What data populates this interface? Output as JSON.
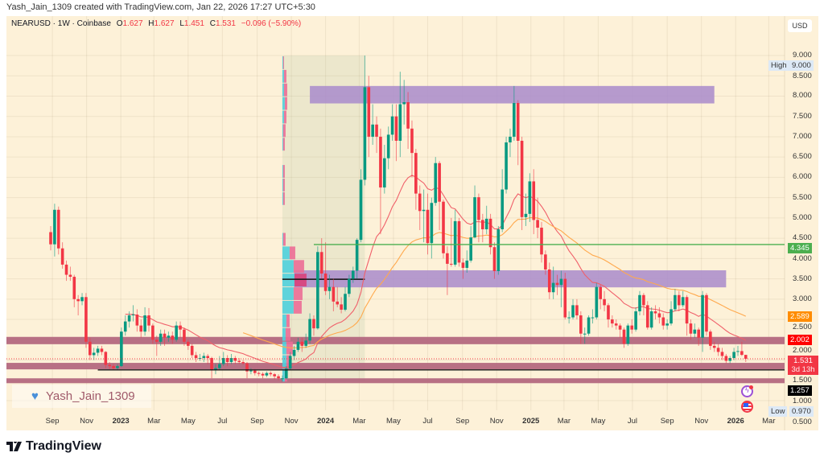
{
  "credit": "Yash_Jain_1309 created with TradingView.com, Jan 22, 2026 17:27 UTC+5:30",
  "legend": {
    "symbol": "NEARUSD · 1W · Coinbase",
    "o_label": "O",
    "o": "1.627",
    "h_label": "H",
    "h": "1.627",
    "l_label": "L",
    "l": "1.451",
    "c_label": "C",
    "c": "1.531",
    "change": "−0.096 (−5.90%)"
  },
  "currency_button": "USD",
  "price_axis": {
    "ticks": [
      "9.000",
      "8.500",
      "8.000",
      "7.500",
      "7.000",
      "6.500",
      "6.000",
      "5.500",
      "5.000",
      "4.500",
      "4.000",
      "3.500",
      "3.000",
      "2.500",
      "2.000",
      "1.500",
      "1.000",
      "0.500"
    ],
    "high_label": "High",
    "high_value": "9.000",
    "low_label": "Low",
    "low_value": "0.970",
    "markers": [
      {
        "name": "horizontal-line-price",
        "value": "4.345",
        "price": 4.345,
        "bg": "#4caf50",
        "fg": "#ffffff"
      },
      {
        "name": "slow-ma-price",
        "value": "2.589",
        "price": 2.589,
        "bg": "#ff8c00",
        "fg": "#ffffff"
      },
      {
        "name": "fast-ma-price",
        "value": "2.002",
        "price": 2.002,
        "bg": "#ff0000",
        "fg": "#ffffff"
      },
      {
        "name": "support-line-price",
        "value": "1.257",
        "price": 1.257,
        "bg": "#000000",
        "fg": "#ffffff"
      }
    ],
    "last_price": {
      "value": "1.531",
      "countdown": "3d 13h",
      "bg": "#f23645"
    }
  },
  "time_axis": [
    {
      "label": "Sep",
      "date": "2022-09-01"
    },
    {
      "label": "Nov",
      "date": "2022-11-01"
    },
    {
      "label": "2023",
      "date": "2023-01-01",
      "year": true
    },
    {
      "label": "Mar",
      "date": "2023-03-01"
    },
    {
      "label": "May",
      "date": "2023-05-01"
    },
    {
      "label": "Jul",
      "date": "2023-07-01"
    },
    {
      "label": "Sep",
      "date": "2023-09-01"
    },
    {
      "label": "Nov",
      "date": "2023-11-01"
    },
    {
      "label": "2024",
      "date": "2024-01-01",
      "year": true
    },
    {
      "label": "Mar",
      "date": "2024-03-01"
    },
    {
      "label": "May",
      "date": "2024-05-01"
    },
    {
      "label": "Jul",
      "date": "2024-07-01"
    },
    {
      "label": "Sep",
      "date": "2024-09-01"
    },
    {
      "label": "Nov",
      "date": "2024-11-01"
    },
    {
      "label": "2025",
      "date": "2025-01-01",
      "year": true
    },
    {
      "label": "Mar",
      "date": "2025-03-01"
    },
    {
      "label": "May",
      "date": "2025-05-01"
    },
    {
      "label": "Jul",
      "date": "2025-07-01"
    },
    {
      "label": "Sep",
      "date": "2025-09-01"
    },
    {
      "label": "Nov",
      "date": "2025-11-01"
    },
    {
      "label": "2026",
      "date": "2026-01-01",
      "year": true
    },
    {
      "label": "Mar",
      "date": "2026-03-01"
    }
  ],
  "watermark": "Yash_Jain_1309",
  "brand": "TradingView",
  "colors": {
    "up": "#089981",
    "down": "#f23645",
    "fast_ma": "#f0606a",
    "slow_ma": "#ffa94d",
    "zone": "#a98bcb",
    "band": "#b4687f",
    "background": "#fdf1d8"
  },
  "chart_data": {
    "type": "candlestick",
    "symbol": "NEARUSD",
    "interval": "1W",
    "start": "2022-08-29",
    "ylim": [
      0.5,
      9.0
    ],
    "grid": true,
    "candles_ohlc": [
      [
        4.65,
        4.8,
        4.2,
        4.35
      ],
      [
        4.35,
        5.35,
        4.05,
        5.2
      ],
      [
        5.2,
        5.28,
        4.1,
        4.25
      ],
      [
        4.25,
        4.4,
        3.75,
        3.85
      ],
      [
        3.85,
        3.95,
        3.45,
        3.6
      ],
      [
        3.6,
        3.8,
        3.45,
        3.55
      ],
      [
        3.55,
        3.6,
        2.8,
        3.0
      ],
      [
        3.0,
        3.1,
        2.6,
        2.95
      ],
      [
        2.95,
        3.15,
        2.85,
        3.05
      ],
      [
        3.05,
        3.15,
        1.8,
        1.95
      ],
      [
        1.95,
        2.05,
        1.5,
        1.62
      ],
      [
        1.62,
        1.8,
        1.5,
        1.68
      ],
      [
        1.68,
        1.85,
        1.6,
        1.78
      ],
      [
        1.78,
        1.85,
        1.62,
        1.7
      ],
      [
        1.7,
        1.72,
        1.3,
        1.38
      ],
      [
        1.38,
        1.45,
        1.28,
        1.35
      ],
      [
        1.35,
        1.4,
        1.26,
        1.3
      ],
      [
        1.3,
        1.4,
        1.25,
        1.35
      ],
      [
        1.35,
        2.3,
        1.33,
        2.2
      ],
      [
        2.2,
        2.6,
        2.1,
        2.45
      ],
      [
        2.45,
        2.7,
        2.3,
        2.6
      ],
      [
        2.6,
        2.85,
        2.45,
        2.62
      ],
      [
        2.62,
        2.75,
        2.2,
        2.35
      ],
      [
        2.35,
        2.5,
        2.05,
        2.2
      ],
      [
        2.2,
        2.8,
        2.1,
        2.6
      ],
      [
        2.6,
        2.78,
        2.2,
        2.35
      ],
      [
        2.35,
        2.4,
        1.9,
        2.0
      ],
      [
        2.0,
        2.1,
        1.6,
        1.95
      ],
      [
        1.95,
        2.25,
        1.85,
        2.15
      ],
      [
        2.15,
        2.25,
        1.85,
        2.05
      ],
      [
        2.05,
        2.2,
        1.95,
        2.1
      ],
      [
        2.1,
        2.2,
        1.9,
        2.0
      ],
      [
        2.0,
        2.45,
        1.95,
        2.35
      ],
      [
        2.35,
        2.45,
        2.05,
        2.25
      ],
      [
        2.25,
        2.3,
        1.85,
        1.95
      ],
      [
        1.95,
        2.0,
        1.75,
        1.85
      ],
      [
        1.85,
        1.9,
        1.55,
        1.62
      ],
      [
        1.62,
        1.7,
        1.45,
        1.55
      ],
      [
        1.55,
        1.65,
        1.48,
        1.55
      ],
      [
        1.55,
        1.68,
        1.45,
        1.6
      ],
      [
        1.6,
        1.65,
        1.4,
        1.55
      ],
      [
        1.55,
        1.58,
        1.05,
        1.25
      ],
      [
        1.25,
        1.4,
        1.15,
        1.3
      ],
      [
        1.3,
        1.6,
        1.25,
        1.4
      ],
      [
        1.4,
        1.7,
        1.35,
        1.55
      ],
      [
        1.55,
        1.62,
        1.35,
        1.45
      ],
      [
        1.45,
        1.65,
        1.4,
        1.55
      ],
      [
        1.55,
        1.6,
        1.4,
        1.48
      ],
      [
        1.48,
        1.55,
        1.4,
        1.45
      ],
      [
        1.45,
        1.5,
        1.38,
        1.42
      ],
      [
        1.42,
        1.45,
        1.05,
        1.22
      ],
      [
        1.22,
        1.3,
        1.15,
        1.24
      ],
      [
        1.24,
        1.28,
        1.12,
        1.18
      ],
      [
        1.18,
        1.22,
        1.1,
        1.16
      ],
      [
        1.16,
        1.2,
        1.05,
        1.12
      ],
      [
        1.12,
        1.22,
        1.08,
        1.18
      ],
      [
        1.18,
        1.22,
        1.1,
        1.15
      ],
      [
        1.15,
        1.18,
        1.02,
        1.1
      ],
      [
        1.1,
        1.15,
        1.0,
        1.05
      ],
      [
        1.05,
        1.12,
        0.97,
        1.05
      ],
      [
        1.05,
        1.35,
        1.02,
        1.29
      ],
      [
        1.29,
        1.7,
        1.25,
        1.6
      ],
      [
        1.6,
        1.85,
        1.5,
        1.75
      ],
      [
        1.75,
        2.05,
        1.7,
        1.95
      ],
      [
        1.95,
        2.05,
        1.7,
        1.85
      ],
      [
        1.85,
        2.15,
        1.8,
        1.98
      ],
      [
        1.98,
        2.65,
        1.9,
        2.51
      ],
      [
        2.51,
        2.6,
        2.1,
        2.28
      ],
      [
        2.28,
        4.3,
        2.25,
        4.16
      ],
      [
        4.16,
        4.5,
        3.5,
        3.63
      ],
      [
        3.63,
        4.4,
        3.1,
        3.2
      ],
      [
        3.2,
        3.6,
        3.0,
        3.3
      ],
      [
        3.3,
        3.5,
        2.7,
        2.94
      ],
      [
        2.94,
        3.3,
        2.8,
        2.87
      ],
      [
        2.87,
        3.05,
        2.65,
        2.74
      ],
      [
        2.74,
        3.3,
        2.7,
        3.13
      ],
      [
        3.13,
        3.6,
        3.05,
        3.5
      ],
      [
        3.5,
        3.8,
        3.4,
        3.7
      ],
      [
        3.7,
        4.5,
        3.5,
        4.46
      ],
      [
        4.46,
        6.2,
        4.4,
        5.94
      ],
      [
        5.94,
        9.0,
        5.8,
        8.22
      ],
      [
        8.22,
        8.5,
        6.5,
        7.0
      ],
      [
        7.0,
        7.8,
        6.8,
        7.3
      ],
      [
        7.3,
        7.5,
        6.6,
        7.0
      ],
      [
        7.0,
        7.2,
        4.6,
        5.75
      ],
      [
        5.75,
        6.8,
        5.6,
        6.47
      ],
      [
        6.47,
        7.25,
        6.2,
        7.05
      ],
      [
        7.05,
        7.8,
        6.9,
        7.5
      ],
      [
        7.5,
        7.8,
        6.4,
        6.9
      ],
      [
        6.9,
        8.6,
        6.5,
        7.8
      ],
      [
        7.8,
        8.4,
        7.3,
        7.85
      ],
      [
        7.85,
        8.1,
        6.7,
        7.2
      ],
      [
        7.2,
        7.4,
        6.0,
        6.6
      ],
      [
        6.6,
        6.7,
        5.2,
        5.6
      ],
      [
        5.6,
        5.8,
        4.7,
        5.17
      ],
      [
        5.17,
        5.7,
        4.4,
        5.2
      ],
      [
        5.2,
        5.6,
        4.1,
        4.38
      ],
      [
        4.38,
        5.5,
        4.0,
        5.37
      ],
      [
        5.37,
        6.5,
        5.3,
        6.35
      ],
      [
        6.35,
        6.4,
        4.7,
        5.4
      ],
      [
        5.4,
        5.45,
        4.0,
        4.13
      ],
      [
        4.13,
        4.3,
        3.1,
        3.87
      ],
      [
        3.87,
        5.0,
        3.8,
        3.85
      ],
      [
        3.85,
        5.2,
        3.8,
        4.92
      ],
      [
        4.92,
        5.0,
        3.8,
        3.9
      ],
      [
        3.9,
        4.0,
        3.5,
        3.77
      ],
      [
        3.77,
        4.2,
        3.65,
        3.95
      ],
      [
        3.95,
        4.8,
        3.9,
        4.52
      ],
      [
        4.52,
        5.8,
        4.5,
        5.51
      ],
      [
        5.51,
        5.6,
        4.4,
        4.95
      ],
      [
        4.95,
        5.1,
        4.4,
        4.72
      ],
      [
        4.72,
        5.3,
        4.6,
        4.98
      ],
      [
        4.98,
        5.1,
        4.1,
        4.28
      ],
      [
        4.28,
        4.4,
        3.5,
        3.69
      ],
      [
        3.69,
        4.8,
        3.6,
        4.72
      ],
      [
        4.72,
        6.2,
        4.65,
        5.7
      ],
      [
        5.7,
        7.0,
        5.6,
        6.86
      ],
      [
        6.86,
        7.2,
        6.5,
        7.0
      ],
      [
        7.0,
        8.25,
        6.9,
        7.83
      ],
      [
        7.83,
        7.9,
        6.3,
        6.9
      ],
      [
        6.9,
        7.0,
        4.7,
        5.02
      ],
      [
        5.02,
        5.6,
        4.8,
        5.1
      ],
      [
        5.1,
        6.1,
        4.9,
        5.9
      ],
      [
        5.9,
        6.2,
        4.6,
        4.95
      ],
      [
        4.95,
        5.5,
        4.5,
        4.76
      ],
      [
        4.76,
        4.9,
        3.9,
        4.1
      ],
      [
        4.1,
        4.2,
        3.6,
        3.73
      ],
      [
        3.73,
        3.9,
        3.0,
        3.17
      ],
      [
        3.17,
        3.8,
        3.0,
        3.4
      ],
      [
        3.4,
        3.6,
        3.1,
        3.35
      ],
      [
        3.35,
        3.7,
        2.8,
        3.5
      ],
      [
        3.5,
        3.65,
        2.5,
        2.55
      ],
      [
        2.55,
        2.7,
        2.4,
        2.55
      ],
      [
        2.55,
        3.0,
        2.5,
        2.85
      ],
      [
        2.85,
        3.0,
        2.5,
        2.6
      ],
      [
        2.6,
        2.7,
        1.9,
        2.15
      ],
      [
        2.15,
        2.3,
        1.9,
        2.15
      ],
      [
        2.15,
        2.6,
        2.1,
        2.55
      ],
      [
        2.55,
        2.75,
        2.4,
        2.55
      ],
      [
        2.55,
        3.4,
        2.5,
        3.3
      ],
      [
        3.3,
        3.35,
        2.75,
        3.0
      ],
      [
        3.0,
        3.2,
        2.7,
        2.85
      ],
      [
        2.85,
        2.9,
        2.3,
        2.5
      ],
      [
        2.5,
        2.6,
        2.3,
        2.4
      ],
      [
        2.4,
        2.5,
        2.25,
        2.35
      ],
      [
        2.35,
        2.4,
        2.05,
        2.25
      ],
      [
        2.25,
        2.3,
        1.8,
        1.9
      ],
      [
        1.9,
        2.4,
        1.85,
        2.35
      ],
      [
        2.35,
        2.5,
        2.15,
        2.25
      ],
      [
        2.25,
        2.8,
        2.2,
        2.7
      ],
      [
        2.7,
        3.2,
        2.6,
        3.1
      ],
      [
        3.1,
        3.15,
        2.6,
        2.85
      ],
      [
        2.85,
        2.95,
        2.25,
        2.3
      ],
      [
        2.3,
        2.8,
        2.25,
        2.7
      ],
      [
        2.7,
        2.85,
        2.5,
        2.65
      ],
      [
        2.65,
        2.8,
        2.4,
        2.55
      ],
      [
        2.55,
        2.65,
        2.25,
        2.35
      ],
      [
        2.35,
        2.5,
        2.25,
        2.4
      ],
      [
        2.4,
        2.95,
        2.35,
        2.75
      ],
      [
        2.75,
        3.25,
        2.7,
        3.1
      ],
      [
        3.1,
        3.2,
        2.7,
        2.85
      ],
      [
        2.85,
        3.2,
        2.8,
        3.05
      ],
      [
        3.05,
        3.1,
        2.1,
        2.4
      ],
      [
        2.4,
        2.5,
        2.0,
        2.15
      ],
      [
        2.15,
        2.4,
        2.05,
        2.25
      ],
      [
        2.25,
        2.3,
        1.85,
        2.05
      ],
      [
        2.05,
        3.2,
        1.7,
        3.1
      ],
      [
        3.1,
        3.15,
        2.1,
        2.2
      ],
      [
        2.2,
        2.25,
        1.75,
        1.85
      ],
      [
        1.85,
        1.95,
        1.7,
        1.8
      ],
      [
        1.8,
        1.9,
        1.6,
        1.7
      ],
      [
        1.7,
        1.8,
        1.5,
        1.6
      ],
      [
        1.6,
        1.65,
        1.42,
        1.48
      ],
      [
        1.48,
        1.6,
        1.42,
        1.55
      ],
      [
        1.55,
        1.8,
        1.5,
        1.7
      ],
      [
        1.7,
        1.85,
        1.6,
        1.72
      ],
      [
        1.72,
        1.95,
        1.6,
        1.627
      ],
      [
        1.627,
        1.627,
        1.451,
        1.531
      ]
    ],
    "zones": [
      {
        "top": 8.25,
        "bottom": 7.82,
        "from": "2023-12-04",
        "to": "2025-11-24",
        "color": "#a98bcb"
      },
      {
        "top": 3.71,
        "bottom": 3.29,
        "from": "2023-11-06",
        "to": "2025-12-15",
        "color": "#a98bcb"
      }
    ],
    "bands": [
      {
        "top": 2.07,
        "bottom": 1.89,
        "color": "#b4687f"
      },
      {
        "top": 1.43,
        "bottom": 1.27,
        "color": "#b4687f"
      },
      {
        "top": 1.05,
        "bottom": 0.93,
        "color": "#b4687f"
      }
    ],
    "horizontal_rays": [
      {
        "price": 4.345,
        "from": "2023-12-11",
        "color": "#4caf50"
      },
      {
        "price": 1.257,
        "from": "2022-11-21",
        "color": "#1a1a1a"
      }
    ],
    "current_price_line": 1.531,
    "volume_profile": {
      "from": "2023-10-16",
      "to": "2024-03-11",
      "price_low": 0.97,
      "price_high": 9.0,
      "poc_price": 3.49,
      "rows_bottom_up": [
        {
          "up": 3,
          "down": 3
        },
        {
          "up": 5,
          "down": 6
        },
        {
          "up": 5,
          "down": 8
        },
        {
          "up": 4,
          "down": 6
        },
        {
          "up": 5,
          "down": 4
        },
        {
          "up": 14,
          "down": 10
        },
        {
          "up": 14,
          "down": 11
        },
        {
          "up": 15,
          "down": 15
        },
        {
          "up": 14,
          "down": 13
        },
        {
          "up": 9,
          "down": 7
        },
        {
          "up": 1,
          "down": 3
        },
        {
          "up": 0,
          "down": 0
        },
        {
          "up": 0,
          "down": 0
        },
        {
          "up": 1,
          "down": 2
        },
        {
          "up": 1,
          "down": 2
        },
        {
          "up": 1,
          "down": 2
        },
        {
          "up": 0,
          "down": 0
        },
        {
          "up": 1,
          "down": 2
        },
        {
          "up": 1,
          "down": 3
        },
        {
          "up": 2,
          "down": 3
        },
        {
          "up": 3,
          "down": 3
        },
        {
          "up": 2,
          "down": 4
        },
        {
          "up": 2,
          "down": 3
        },
        {
          "up": 1,
          "down": 1
        }
      ]
    },
    "moving_averages": [
      {
        "color": "#f0606a",
        "period": 20
      },
      {
        "color": "#ffa94d",
        "period": 50
      }
    ]
  }
}
